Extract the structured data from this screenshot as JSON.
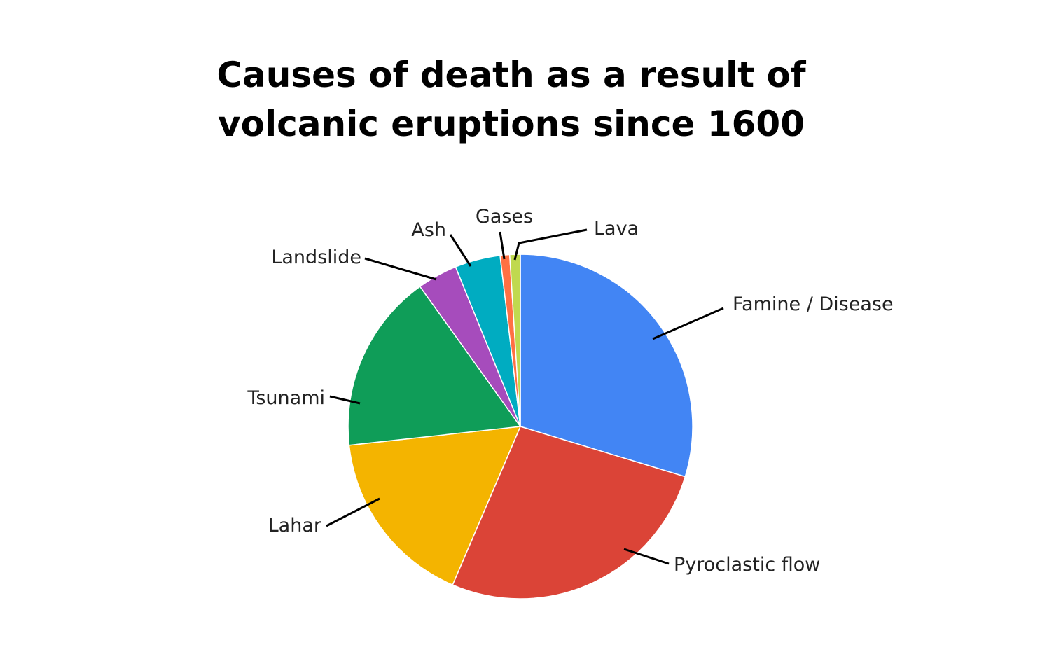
{
  "chart_data": {
    "type": "pie",
    "title_lines": [
      "Causes of death as a result of",
      "volcanic eruptions since 1600"
    ],
    "slices": [
      {
        "label": "Famine / Disease",
        "value": 30.0,
        "color": "#4285F4"
      },
      {
        "label": "Pyroclastic flow",
        "value": 27.0,
        "color": "#DB4437"
      },
      {
        "label": "Lahar",
        "value": 17.0,
        "color": "#F4B400"
      },
      {
        "label": "Tsunami",
        "value": 17.0,
        "color": "#0F9D58"
      },
      {
        "label": "Landslide",
        "value": 3.8,
        "color": "#A64CBC"
      },
      {
        "label": "Ash",
        "value": 4.3,
        "color": "#00ACC1"
      },
      {
        "label": "Gases",
        "value": 0.9,
        "color": "#FF7043"
      },
      {
        "label": "Lava",
        "value": 1.0,
        "color": "#C0D94F"
      }
    ],
    "legend": "none",
    "label_placement": "outside with leader lines"
  }
}
